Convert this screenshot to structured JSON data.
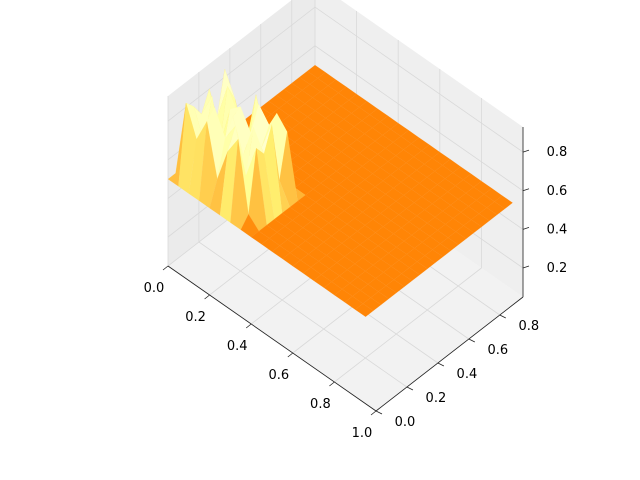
{
  "chart_data": {
    "type": "surface-3d",
    "title": "",
    "xlabel": "",
    "ylabel": "",
    "zlabel": "",
    "colormap": "afmhot",
    "xlim": [
      0.0,
      1.0
    ],
    "ylim": [
      0.0,
      0.95
    ],
    "zlim": [
      0.05,
      0.93
    ],
    "x_ticks": [
      "0.0",
      "0.2",
      "0.4",
      "0.6",
      "0.8",
      "1.0"
    ],
    "y_ticks": [
      "0.0",
      "0.2",
      "0.4",
      "0.6",
      "0.8"
    ],
    "z_ticks": [
      "0.2",
      "0.4",
      "0.6",
      "0.8"
    ],
    "x_tick_values": [
      0.0,
      0.2,
      0.4,
      0.6,
      0.8,
      1.0
    ],
    "y_tick_values": [
      0.0,
      0.2,
      0.4,
      0.6,
      0.8
    ],
    "z_tick_values": [
      0.2,
      0.4,
      0.6,
      0.8
    ],
    "grid": true,
    "x": [
      0.0,
      0.05,
      0.1,
      0.15,
      0.2,
      0.25,
      0.3,
      0.35,
      0.4,
      0.45,
      0.5,
      0.55,
      0.6,
      0.65,
      0.7,
      0.75,
      0.8,
      0.85,
      0.9,
      0.95
    ],
    "y": [
      0.0,
      0.05,
      0.1,
      0.15,
      0.2,
      0.25,
      0.3,
      0.35,
      0.4,
      0.45,
      0.5,
      0.55,
      0.6,
      0.65,
      0.7,
      0.75,
      0.8,
      0.85,
      0.9,
      0.95
    ],
    "z": [
      [
        0.5,
        0.5,
        0.5,
        0.5,
        0.5,
        0.5,
        0.5,
        0.5,
        0.5,
        0.5,
        0.5,
        0.5,
        0.5,
        0.5,
        0.5,
        0.5,
        0.5,
        0.5,
        0.5,
        0.5
      ],
      [
        0.5,
        0.9,
        0.75,
        0.88,
        0.62,
        0.8,
        0.9,
        0.55,
        0.5,
        0.5,
        0.5,
        0.5,
        0.5,
        0.5,
        0.5,
        0.5,
        0.5,
        0.5,
        0.5,
        0.5
      ],
      [
        0.5,
        0.85,
        0.7,
        0.92,
        0.8,
        0.9,
        0.68,
        0.86,
        0.5,
        0.5,
        0.5,
        0.5,
        0.5,
        0.5,
        0.5,
        0.5,
        0.5,
        0.5,
        0.5,
        0.5
      ],
      [
        0.5,
        0.78,
        0.91,
        0.65,
        0.88,
        0.72,
        0.9,
        0.8,
        0.5,
        0.5,
        0.5,
        0.5,
        0.5,
        0.5,
        0.5,
        0.5,
        0.5,
        0.5,
        0.5,
        0.5
      ],
      [
        0.5,
        0.88,
        0.62,
        0.85,
        0.9,
        0.8,
        0.76,
        0.92,
        0.5,
        0.5,
        0.5,
        0.5,
        0.5,
        0.5,
        0.5,
        0.5,
        0.5,
        0.5,
        0.5,
        0.5
      ],
      [
        0.5,
        0.7,
        0.9,
        0.8,
        0.66,
        0.92,
        0.85,
        0.6,
        0.5,
        0.5,
        0.5,
        0.5,
        0.5,
        0.5,
        0.5,
        0.5,
        0.5,
        0.5,
        0.5,
        0.5
      ],
      [
        0.5,
        0.92,
        0.8,
        0.6,
        0.9,
        0.7,
        0.88,
        0.82,
        0.5,
        0.5,
        0.5,
        0.5,
        0.5,
        0.5,
        0.5,
        0.5,
        0.5,
        0.5,
        0.5,
        0.5
      ],
      [
        0.5,
        0.5,
        0.5,
        0.5,
        0.5,
        0.5,
        0.5,
        0.5,
        0.5,
        0.5,
        0.5,
        0.5,
        0.5,
        0.5,
        0.5,
        0.5,
        0.5,
        0.5,
        0.5,
        0.5
      ],
      [
        0.5,
        0.5,
        0.5,
        0.5,
        0.5,
        0.5,
        0.5,
        0.5,
        0.5,
        0.5,
        0.5,
        0.5,
        0.5,
        0.5,
        0.5,
        0.5,
        0.5,
        0.5,
        0.5,
        0.5
      ],
      [
        0.5,
        0.5,
        0.5,
        0.5,
        0.5,
        0.5,
        0.5,
        0.5,
        0.5,
        0.5,
        0.5,
        0.5,
        0.5,
        0.5,
        0.5,
        0.5,
        0.5,
        0.5,
        0.5,
        0.5
      ],
      [
        0.5,
        0.5,
        0.5,
        0.5,
        0.5,
        0.5,
        0.5,
        0.5,
        0.5,
        0.5,
        0.5,
        0.5,
        0.5,
        0.5,
        0.5,
        0.5,
        0.5,
        0.5,
        0.5,
        0.5
      ],
      [
        0.5,
        0.5,
        0.5,
        0.5,
        0.5,
        0.5,
        0.5,
        0.5,
        0.5,
        0.5,
        0.5,
        0.5,
        0.5,
        0.5,
        0.5,
        0.5,
        0.5,
        0.5,
        0.5,
        0.5
      ],
      [
        0.5,
        0.5,
        0.5,
        0.5,
        0.5,
        0.5,
        0.5,
        0.5,
        0.5,
        0.5,
        0.5,
        0.5,
        0.5,
        0.5,
        0.5,
        0.5,
        0.5,
        0.5,
        0.5,
        0.5
      ],
      [
        0.5,
        0.5,
        0.5,
        0.5,
        0.5,
        0.5,
        0.5,
        0.5,
        0.5,
        0.5,
        0.5,
        0.5,
        0.5,
        0.5,
        0.5,
        0.5,
        0.5,
        0.5,
        0.5,
        0.5
      ],
      [
        0.5,
        0.5,
        0.5,
        0.5,
        0.5,
        0.5,
        0.5,
        0.5,
        0.5,
        0.5,
        0.5,
        0.5,
        0.5,
        0.5,
        0.5,
        0.5,
        0.5,
        0.5,
        0.5,
        0.5
      ],
      [
        0.5,
        0.5,
        0.5,
        0.5,
        0.5,
        0.5,
        0.5,
        0.5,
        0.5,
        0.5,
        0.5,
        0.5,
        0.5,
        0.5,
        0.5,
        0.5,
        0.5,
        0.5,
        0.5,
        0.5
      ],
      [
        0.5,
        0.5,
        0.5,
        0.5,
        0.5,
        0.5,
        0.5,
        0.5,
        0.5,
        0.5,
        0.5,
        0.5,
        0.5,
        0.5,
        0.5,
        0.5,
        0.5,
        0.5,
        0.5,
        0.5
      ],
      [
        0.5,
        0.5,
        0.5,
        0.5,
        0.5,
        0.5,
        0.5,
        0.5,
        0.5,
        0.5,
        0.5,
        0.5,
        0.5,
        0.5,
        0.5,
        0.5,
        0.5,
        0.5,
        0.5,
        0.5
      ],
      [
        0.5,
        0.5,
        0.5,
        0.5,
        0.5,
        0.5,
        0.5,
        0.5,
        0.5,
        0.5,
        0.5,
        0.5,
        0.5,
        0.5,
        0.5,
        0.5,
        0.5,
        0.5,
        0.5,
        0.5
      ],
      [
        0.5,
        0.5,
        0.5,
        0.5,
        0.5,
        0.5,
        0.5,
        0.5,
        0.5,
        0.5,
        0.5,
        0.5,
        0.5,
        0.5,
        0.5,
        0.5,
        0.5,
        0.5,
        0.5,
        0.5
      ]
    ]
  }
}
